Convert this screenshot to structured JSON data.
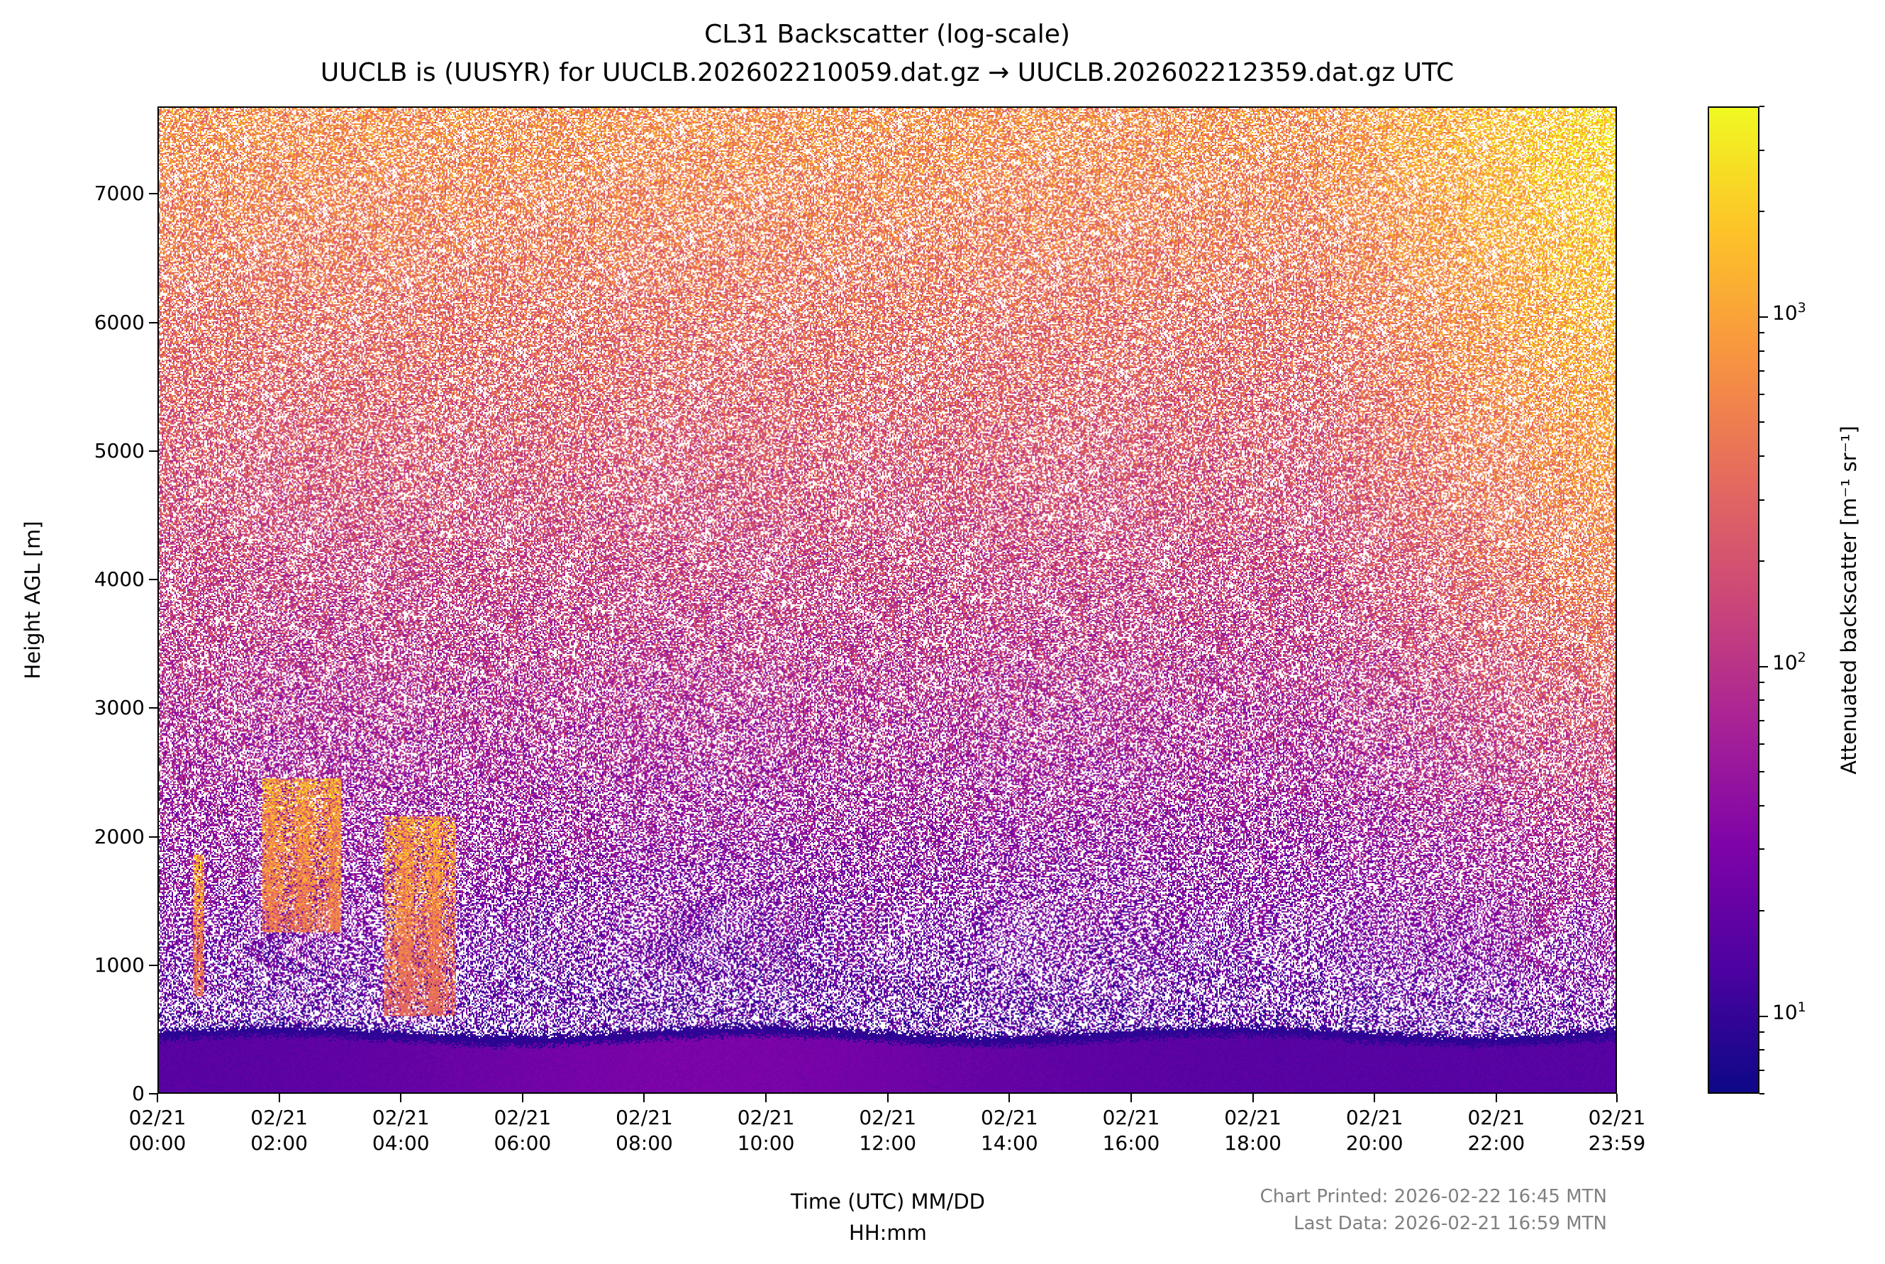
{
  "chart_data": {
    "type": "heatmap",
    "title": "CL31 Backscatter (log-scale)",
    "subtitle": "UUCLB is (UUSYR) for UUCLB.202602210059.dat.gz → UUCLB.202602212359.dat.gz UTC",
    "xlabel_line1": "Time (UTC) MM/DD",
    "xlabel_line2": "HH:mm",
    "ylabel": "Height AGL [m]",
    "colorbar_label": "Attenuated backscatter [m⁻¹ sr⁻¹]",
    "colormap": "plasma",
    "color_scale": "log",
    "clim": [
      6,
      4000
    ],
    "x_range_hours": [
      0,
      23.983
    ],
    "ylim": [
      0,
      7680
    ],
    "x_ticks": [
      {
        "hour": 0,
        "date": "02/21",
        "time": "00:00"
      },
      {
        "hour": 2,
        "date": "02/21",
        "time": "02:00"
      },
      {
        "hour": 4,
        "date": "02/21",
        "time": "04:00"
      },
      {
        "hour": 6,
        "date": "02/21",
        "time": "06:00"
      },
      {
        "hour": 8,
        "date": "02/21",
        "time": "08:00"
      },
      {
        "hour": 10,
        "date": "02/21",
        "time": "10:00"
      },
      {
        "hour": 12,
        "date": "02/21",
        "time": "12:00"
      },
      {
        "hour": 14,
        "date": "02/21",
        "time": "14:00"
      },
      {
        "hour": 16,
        "date": "02/21",
        "time": "16:00"
      },
      {
        "hour": 18,
        "date": "02/21",
        "time": "18:00"
      },
      {
        "hour": 20,
        "date": "02/21",
        "time": "20:00"
      },
      {
        "hour": 22,
        "date": "02/21",
        "time": "22:00"
      },
      {
        "hour": 23.983,
        "date": "02/21",
        "time": "23:59"
      }
    ],
    "y_ticks": [
      0,
      1000,
      2000,
      3000,
      4000,
      5000,
      6000,
      7000
    ],
    "colorbar_ticks": [
      {
        "value": 10,
        "base": "10",
        "exp": "1"
      },
      {
        "value": 100,
        "base": "10",
        "exp": "2"
      },
      {
        "value": 1000,
        "base": "10",
        "exp": "3"
      }
    ],
    "features": {
      "surface_layer_top_m": 450,
      "clouds": [
        {
          "start_hour": 0.55,
          "end_hour": 0.75,
          "base_m": 750,
          "top_m": 1850
        },
        {
          "start_hour": 1.7,
          "end_hour": 3.0,
          "base_m": 1250,
          "top_m": 2450
        },
        {
          "start_hour": 3.7,
          "end_hour": 4.9,
          "base_m": 600,
          "top_m": 2150
        }
      ]
    }
  },
  "footer": {
    "printed": "Chart Printed: 2026-02-22 16:45 MTN",
    "last_data": "Last Data: 2026-02-21 16:59 MTN"
  },
  "colors": {
    "axis": "#000000",
    "footer_text": "#808080",
    "missing": "#ffffff"
  }
}
